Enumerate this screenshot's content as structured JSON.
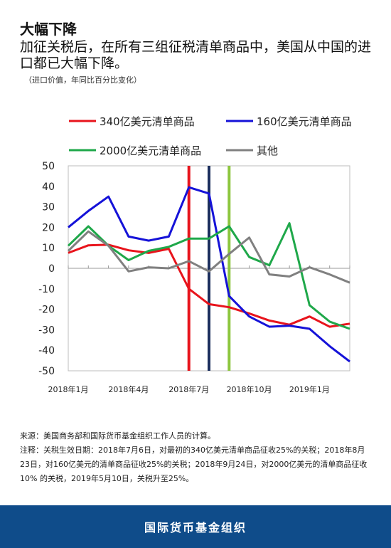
{
  "header": {
    "title": "大幅下降",
    "subtitle": "加征关税后，在所有三组征税清单商品中，美国从中国的进口都已大幅下降。",
    "note": "（进口价值，年同比百分比变化）"
  },
  "chart_data": {
    "type": "line",
    "ylim": [
      -50,
      50
    ],
    "yticks": [
      "50",
      "40",
      "30",
      "20",
      "10",
      "0",
      "-10",
      "-20",
      "-30",
      "-40",
      "-50"
    ],
    "xtick_labels": [
      {
        "label": "2018年1月",
        "index": 0
      },
      {
        "label": "2018年4月",
        "index": 3
      },
      {
        "label": "2018年7月",
        "index": 6
      },
      {
        "label": "2018年10月",
        "index": 9
      },
      {
        "label": "2019年1月",
        "index": 12
      }
    ],
    "grid": false,
    "legend_position": "top",
    "series": [
      {
        "name": "340亿美元清单商品",
        "color": "#e8141c",
        "values": [
          7.5,
          11.2,
          11.5,
          8.8,
          7.5,
          9.5,
          -10.0,
          -17.5,
          -19.0,
          -22.0,
          -25.5,
          -27.5,
          -23.5,
          -28.5,
          -27.0
        ]
      },
      {
        "name": "160亿美元清单商品",
        "color": "#1512d8",
        "values": [
          20.0,
          28.0,
          35.0,
          15.5,
          13.5,
          15.5,
          39.5,
          36.5,
          -13.5,
          -23.5,
          -28.5,
          -28.0,
          -29.5,
          -38.0,
          -45.5
        ]
      },
      {
        "name": "2000亿美元清单商品",
        "color": "#1fa84a",
        "values": [
          11.0,
          20.5,
          11.0,
          4.0,
          8.5,
          10.5,
          14.5,
          14.5,
          20.5,
          5.5,
          1.5,
          22.0,
          -18.0,
          -26.0,
          -29.5
        ]
      },
      {
        "name": "其他",
        "color": "#808080",
        "values": [
          8.5,
          18.0,
          11.0,
          -1.5,
          0.5,
          0.0,
          3.5,
          -1.5,
          7.0,
          15.0,
          -3.0,
          -4.0,
          0.5,
          -3.0,
          -7.0
        ]
      }
    ],
    "annotations": [
      {
        "at_index": 6,
        "color": "#e8141c"
      },
      {
        "at_index": 7,
        "color": "#1c2f5e"
      },
      {
        "at_index": 8,
        "color": "#8dc63f"
      }
    ]
  },
  "footer": {
    "source": "来源：美国商务部和国际货币基金组织工作人员的计算。",
    "annotation": "注释：关税生效日期：2018年7月6日，对最初的340亿美元清单商品征收25%的关税；2018年8月23日，对160亿美元的清单商品征收25%的关税；2018年9月24日，对2000亿美元的清单商品征收10% 的关税，2019年5月10日，关税升至25%。",
    "banner": "国际货币基金组织"
  }
}
